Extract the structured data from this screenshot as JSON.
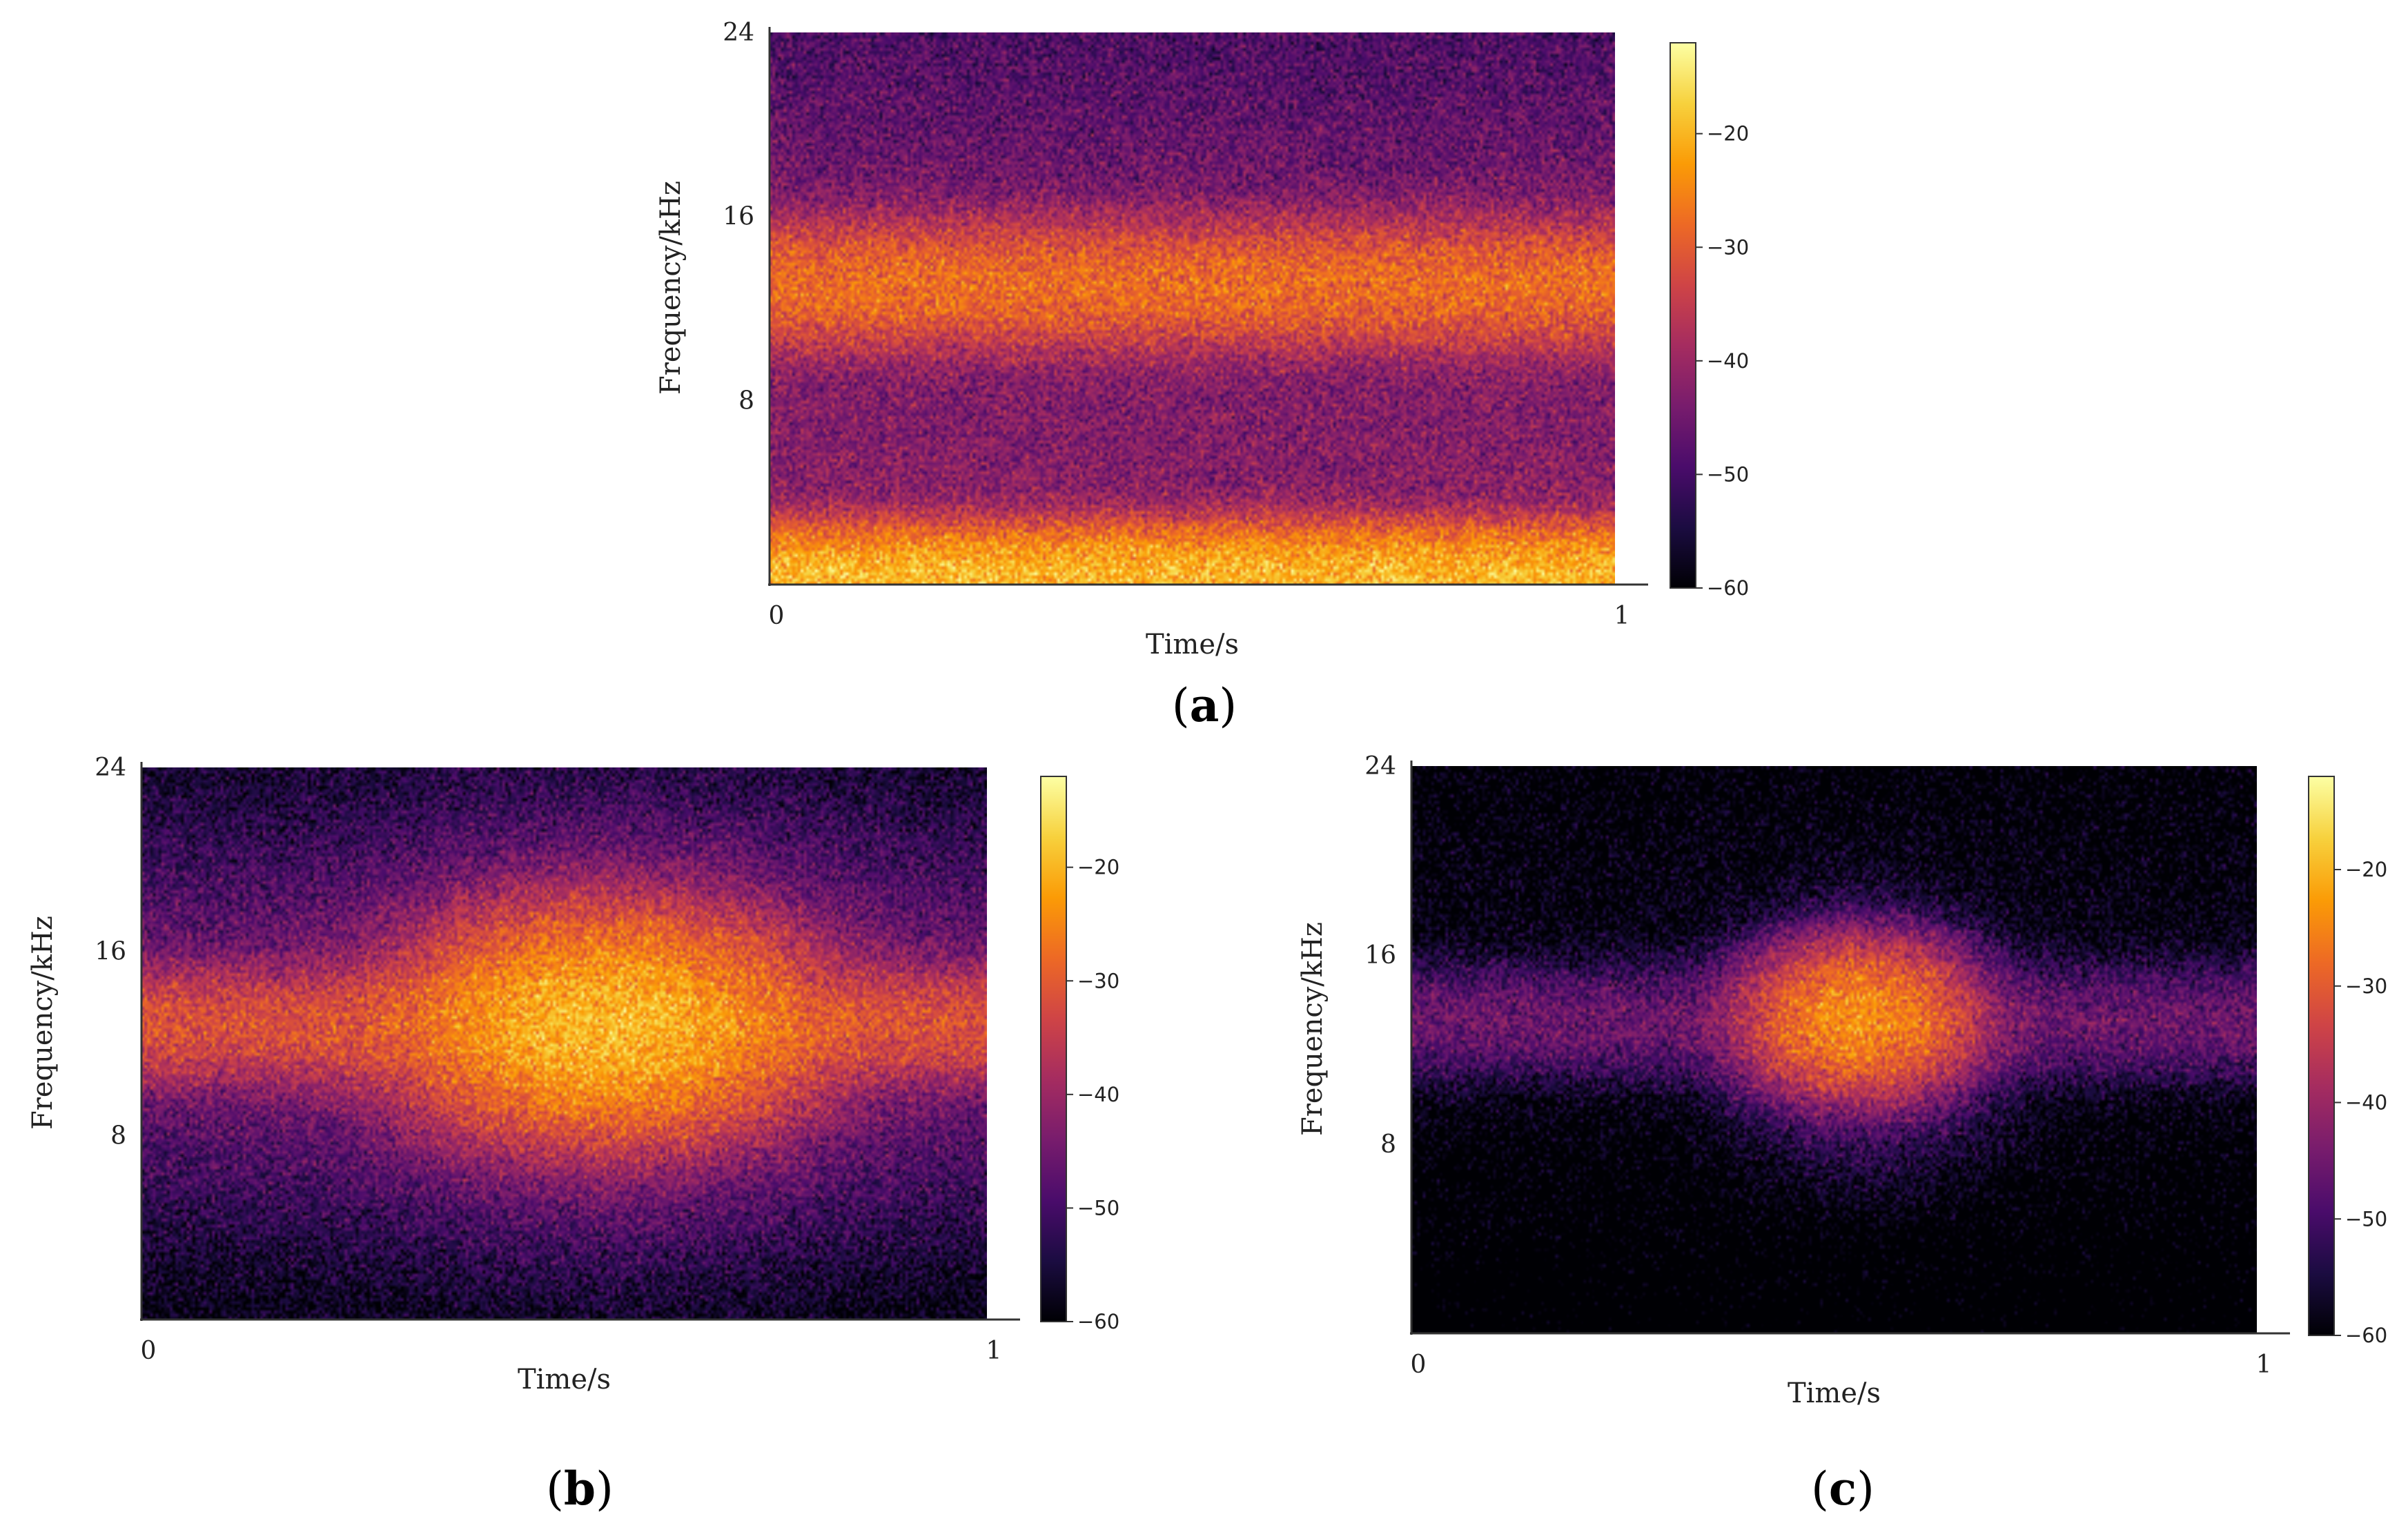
{
  "colormap": {
    "name": "inferno",
    "stops": [
      "#000004",
      "#1b0c41",
      "#4a0c6b",
      "#781c6d",
      "#a52c60",
      "#cf4446",
      "#ed6925",
      "#fb9b06",
      "#f7d13d",
      "#fcffa4"
    ]
  },
  "chart_data": [
    {
      "type": "heatmap",
      "panel": "a",
      "panel_label": {
        "open": "(",
        "letter": "a",
        "close": ")"
      },
      "title": "",
      "xlabel": "Time/s",
      "ylabel": "Frequency/kHz",
      "xlim": [
        0,
        1
      ],
      "ylim": [
        0,
        24
      ],
      "x_ticks": [
        0,
        1
      ],
      "y_ticks": [
        8,
        16,
        24
      ],
      "colorbar": {
        "vmin": -60,
        "vmax": -12,
        "ticks": [
          -60,
          -50,
          -40,
          -30,
          -20
        ]
      },
      "background_db": -55,
      "noise_db": 7,
      "components": [
        {
          "kind": "band",
          "center_khz": 13,
          "width_khz": 1.3,
          "peak_db": -28
        },
        {
          "kind": "band",
          "center_khz": 13,
          "width_khz": 4.5,
          "peak_db": -45
        },
        {
          "kind": "band",
          "center_khz": 0.3,
          "width_khz": 1.0,
          "peak_db": -20
        },
        {
          "kind": "band",
          "center_khz": 0,
          "width_khz": 5.5,
          "peak_db": -42
        },
        {
          "kind": "band",
          "center_khz": 16,
          "width_khz": 12,
          "peak_db": -50
        }
      ]
    },
    {
      "type": "heatmap",
      "panel": "b",
      "panel_label": {
        "open": "(",
        "letter": "b",
        "close": ")"
      },
      "title": "",
      "xlabel": "Time/s",
      "ylabel": "Frequency/kHz",
      "xlim": [
        0,
        1
      ],
      "ylim": [
        0,
        24
      ],
      "x_ticks": [
        0,
        1
      ],
      "y_ticks": [
        8,
        16,
        24
      ],
      "colorbar": {
        "vmin": -60,
        "vmax": -12,
        "ticks": [
          -60,
          -50,
          -40,
          -30,
          -20
        ]
      },
      "background_db": -68,
      "noise_db": 7,
      "components": [
        {
          "kind": "band",
          "center_khz": 12.8,
          "width_khz": 1.2,
          "peak_db": -32
        },
        {
          "kind": "band",
          "center_khz": 12.8,
          "width_khz": 4.0,
          "peak_db": -46
        },
        {
          "kind": "band",
          "center_khz": 14,
          "width_khz": 11,
          "peak_db": -56
        },
        {
          "kind": "blob",
          "t": 0.55,
          "f_khz": 12.8,
          "sigma_t": 0.1,
          "sigma_khz": 2.0,
          "peak_db": -20
        },
        {
          "kind": "blob",
          "t": 0.55,
          "f_khz": 12.8,
          "sigma_t": 0.16,
          "sigma_khz": 4.0,
          "peak_db": -40
        }
      ]
    },
    {
      "type": "heatmap",
      "panel": "c",
      "panel_label": {
        "open": "(",
        "letter": "c",
        "close": ")"
      },
      "title": "",
      "xlabel": "Time/s",
      "ylabel": "Frequency/kHz",
      "xlim": [
        0,
        1
      ],
      "ylim": [
        0,
        24
      ],
      "x_ticks": [
        0,
        1
      ],
      "y_ticks": [
        8,
        16,
        24
      ],
      "colorbar": {
        "vmin": -60,
        "vmax": -12,
        "ticks": [
          -60,
          -50,
          -40,
          -30,
          -20
        ]
      },
      "background_db": -72,
      "noise_db": 7,
      "components": [
        {
          "kind": "band",
          "center_khz": 13.2,
          "width_khz": 1.2,
          "peak_db": -46
        },
        {
          "kind": "band",
          "center_khz": 16,
          "width_khz": 9,
          "peak_db": -60
        },
        {
          "kind": "blob",
          "t": 0.53,
          "f_khz": 13.3,
          "sigma_t": 0.055,
          "sigma_khz": 1.3,
          "peak_db": -24
        },
        {
          "kind": "blob",
          "t": 0.54,
          "f_khz": 12.5,
          "sigma_t": 0.08,
          "sigma_khz": 2.6,
          "peak_db": -46
        }
      ]
    }
  ]
}
